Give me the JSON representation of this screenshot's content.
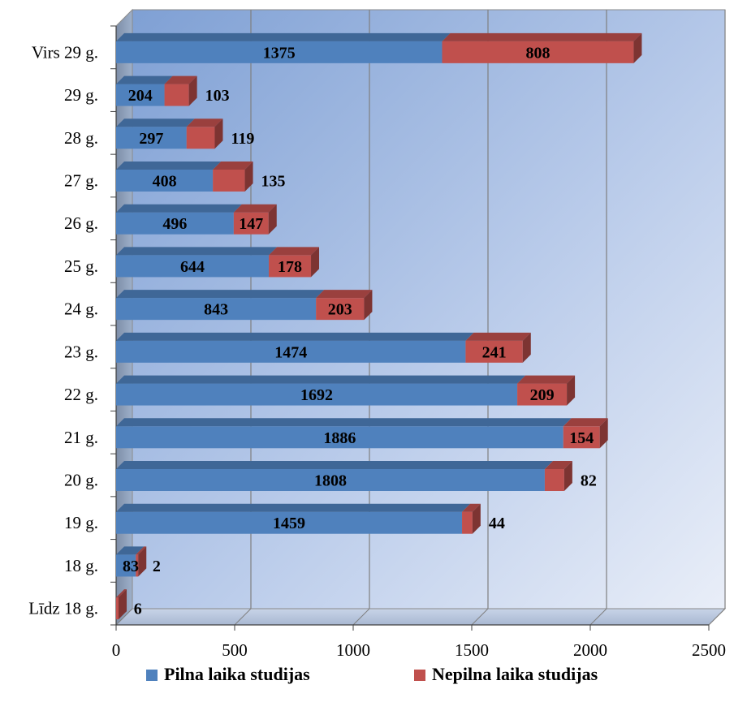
{
  "chart_data": {
    "type": "bar",
    "orientation": "horizontal",
    "stacked": true,
    "categories": [
      "Līdz 18 g.",
      "18 g.",
      "19 g.",
      "20 g.",
      "21 g.",
      "22 g.",
      "23 g.",
      "24 g.",
      "25 g.",
      "26 g.",
      "27 g.",
      "28 g.",
      "29 g.",
      "Virs 29 g."
    ],
    "series": [
      {
        "name": "Pilna laika studijas",
        "color": "#4f81bd",
        "values": [
          0,
          83,
          1459,
          1808,
          1886,
          1692,
          1474,
          843,
          644,
          496,
          408,
          297,
          204,
          1375
        ],
        "labels": [
          "",
          "83",
          "1459",
          "1808",
          "1886",
          "1692",
          "1474",
          "843",
          "644",
          "496",
          "408",
          "297",
          "204",
          "1375"
        ]
      },
      {
        "name": "Nepilna laika studijas",
        "color": "#c0504d",
        "values": [
          6,
          2,
          44,
          82,
          154,
          209,
          241,
          203,
          178,
          147,
          135,
          119,
          103,
          808
        ],
        "labels": [
          "6",
          "2",
          "44",
          "82",
          "154",
          "209",
          "241",
          "203",
          "178",
          "147",
          "135",
          "119",
          "103",
          "808"
        ]
      }
    ],
    "xlim": [
      0,
      2500
    ],
    "xticks": [
      "0",
      "500",
      "1000",
      "1500",
      "2000",
      "2500"
    ],
    "grid": true,
    "legend_position": "bottom",
    "title": "",
    "xlabel": "",
    "ylabel": ""
  }
}
